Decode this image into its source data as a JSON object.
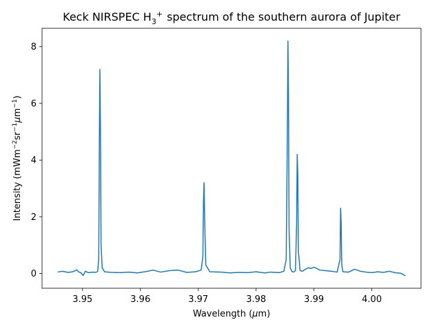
{
  "chart_data": {
    "type": "line",
    "title_parts": {
      "prefix": "Keck NIRSPEC H",
      "sub": "3",
      "sup": "+",
      "suffix": "spectrum of the southern aurora of Jupiter"
    },
    "xlabel_parts": {
      "prefix": "Wavelength (",
      "mu": "μ",
      "suffix": "m)"
    },
    "ylabel_parts": {
      "a": "Intensity (mWm",
      "a_sup": "−2",
      "b": "sr",
      "b_sup": "−1",
      "mu": "μ",
      "c": "m",
      "c_sup": "−1",
      "d": ")"
    },
    "xlim": [
      3.943,
      4.0085
    ],
    "ylim": [
      -0.52,
      8.65
    ],
    "x_ticks": [
      3.95,
      3.96,
      3.97,
      3.98,
      3.99,
      4.0
    ],
    "x_tick_labels": [
      "3.95",
      "3.96",
      "3.97",
      "3.98",
      "3.99",
      "4.00"
    ],
    "y_ticks": [
      0,
      2,
      4,
      6,
      8
    ],
    "y_tick_labels": [
      "0",
      "2",
      "4",
      "6",
      "8"
    ],
    "grid": false,
    "line_color": "#1f77b4",
    "series": [
      {
        "x": [
          3.9457,
          3.9465,
          3.9475,
          3.9483,
          3.949,
          3.9493,
          3.9497,
          3.9501,
          3.9505,
          3.951,
          3.9518,
          3.9523,
          3.9526,
          3.9528,
          3.9529,
          3.953,
          3.9531,
          3.9532,
          3.9534,
          3.9538,
          3.955,
          3.9565,
          3.958,
          3.9595,
          3.961,
          3.9622,
          3.9635,
          3.965,
          3.9665,
          3.968,
          3.9695,
          3.9705,
          3.9708,
          3.9709,
          3.971,
          3.9711,
          3.9713,
          3.972,
          3.974,
          3.9755,
          3.977,
          3.9785,
          3.98,
          3.9815,
          3.9825,
          3.984,
          3.9848,
          3.9852,
          3.9854,
          3.9855,
          3.9856,
          3.9857,
          3.9859,
          3.9862,
          3.9865,
          3.9868,
          3.987,
          3.9871,
          3.9872,
          3.9873,
          3.9876,
          3.988,
          3.9885,
          3.989,
          3.9895,
          3.99,
          3.9905,
          3.991,
          3.992,
          3.993,
          3.994,
          3.9945,
          3.9946,
          3.9947,
          3.9948,
          3.995,
          3.996,
          3.997,
          3.9975,
          3.998,
          3.999,
          4.0,
          4.001,
          4.002,
          4.003,
          4.004,
          4.005,
          4.0058
        ],
        "y": [
          0.05,
          0.08,
          0.04,
          0.06,
          0.13,
          0.06,
          0.03,
          -0.07,
          0.08,
          0.03,
          0.05,
          0.04,
          0.07,
          0.5,
          4.5,
          7.2,
          5.0,
          1.0,
          0.2,
          0.06,
          0.04,
          0.03,
          0.05,
          0.02,
          0.07,
          0.12,
          0.05,
          0.1,
          0.12,
          0.04,
          0.06,
          0.12,
          0.6,
          2.5,
          3.2,
          2.0,
          0.3,
          0.06,
          0.05,
          0.02,
          0.04,
          0.03,
          0.06,
          0.02,
          0.05,
          0.03,
          0.08,
          0.5,
          5.0,
          8.2,
          6.0,
          1.5,
          0.2,
          0.07,
          0.05,
          0.1,
          1.8,
          4.2,
          3.5,
          0.8,
          0.1,
          0.08,
          0.15,
          0.2,
          0.18,
          0.22,
          0.18,
          0.12,
          0.1,
          0.08,
          0.05,
          0.5,
          2.3,
          1.8,
          0.3,
          0.06,
          0.05,
          0.15,
          0.12,
          0.08,
          0.05,
          0.03,
          0.06,
          0.04,
          0.08,
          0.03,
          0.01,
          -0.08
        ]
      }
    ]
  }
}
